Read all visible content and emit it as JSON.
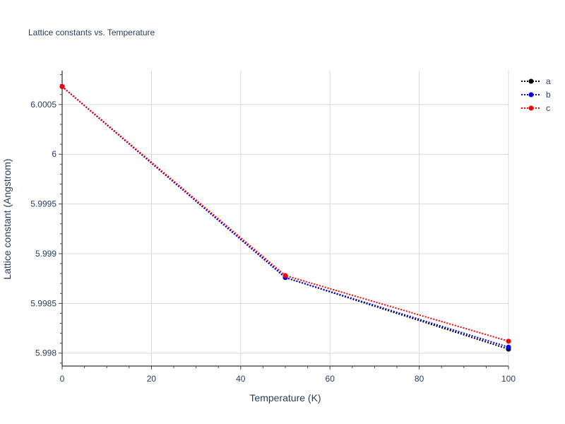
{
  "chart_data": {
    "type": "line",
    "title": "Lattice constants vs. Temperature",
    "xlabel": "Temperature (K)",
    "ylabel": "Lattice constant (Angstrom)",
    "xlim": [
      0,
      100
    ],
    "ylim": [
      5.99787,
      6.00084
    ],
    "x_ticks": [
      0,
      20,
      40,
      60,
      80,
      100
    ],
    "x_tick_labels": [
      "0",
      "20",
      "40",
      "60",
      "80",
      "100"
    ],
    "y_ticks": [
      5.998,
      5.9985,
      5.999,
      5.9995,
      6.0,
      6.0005
    ],
    "y_tick_labels": [
      "5.998",
      "5.9985",
      "5.999",
      "5.9995",
      "6",
      "6.0005"
    ],
    "x": [
      0,
      50,
      100
    ],
    "series": [
      {
        "name": "a",
        "values": [
          6.00068,
          5.99876,
          5.99804
        ],
        "color": "#000000"
      },
      {
        "name": "b",
        "values": [
          6.00068,
          5.99876,
          5.99806
        ],
        "color": "#0000ff"
      },
      {
        "name": "c",
        "values": [
          6.00068,
          5.99878,
          5.99812
        ],
        "color": "#ff0000"
      }
    ],
    "grid": true,
    "legend_position": "top-right",
    "line_style": "dotted",
    "marker": "circle"
  }
}
